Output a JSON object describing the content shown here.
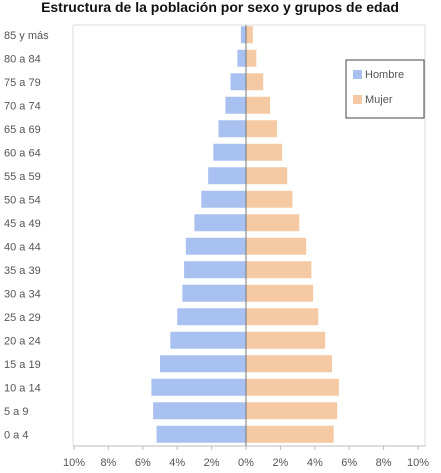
{
  "chart_data": {
    "type": "bar",
    "orientation": "horizontal-population-pyramid",
    "title": "Estructura de la población por sexo y grupos de edad",
    "categories": [
      "0 a 4",
      "5 a 9",
      "10 a 14",
      "15 a 19",
      "20 a 24",
      "25 a 29",
      "30 a 34",
      "35 a 39",
      "40 a 44",
      "45 a 49",
      "50 a 54",
      "55 a 59",
      "60 a 64",
      "65 a 69",
      "70 a 74",
      "75 a 79",
      "80 a 84",
      "85 y más"
    ],
    "series": [
      {
        "name": "Hombre",
        "color": "#a9c1f0",
        "values": [
          5.2,
          5.4,
          5.5,
          5.0,
          4.4,
          4.0,
          3.7,
          3.6,
          3.5,
          3.0,
          2.6,
          2.2,
          1.9,
          1.6,
          1.2,
          0.9,
          0.5,
          0.3
        ]
      },
      {
        "name": "Mujer",
        "color": "#f5c9a4",
        "values": [
          5.1,
          5.3,
          5.4,
          5.0,
          4.6,
          4.2,
          3.9,
          3.8,
          3.5,
          3.1,
          2.7,
          2.4,
          2.1,
          1.8,
          1.4,
          1.0,
          0.6,
          0.4
        ]
      }
    ],
    "xlim": [
      -10,
      10
    ],
    "x_ticks": [
      "10%",
      "8%",
      "6%",
      "4%",
      "2%",
      "0%",
      "2%",
      "4%",
      "6%",
      "8%",
      "10%"
    ],
    "xlabel": "",
    "ylabel": "",
    "grid": false,
    "legend_position": "top-right"
  }
}
